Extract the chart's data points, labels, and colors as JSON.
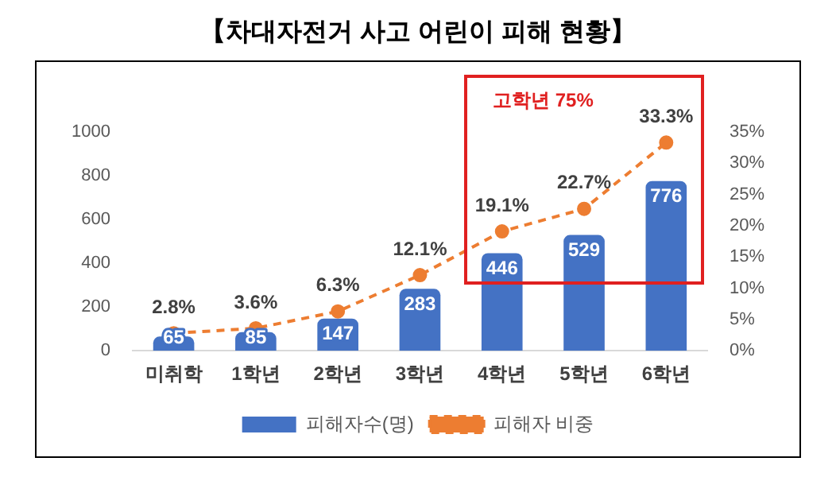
{
  "chart_data": {
    "type": "bar",
    "title": "【차대자전거 사고 어린이 피해 현황】",
    "categories": [
      "미취학",
      "1학년",
      "2학년",
      "3학년",
      "4학년",
      "5학년",
      "6학년"
    ],
    "series": [
      {
        "name": "피해자수(명)",
        "color": "#4472c4",
        "values": [
          65,
          85,
          147,
          283,
          446,
          529,
          776
        ],
        "value_labels": [
          "65",
          "85",
          "147",
          "283",
          "446",
          "529",
          "776"
        ]
      },
      {
        "name": "피해자 비중",
        "type": "line",
        "axis": "y2",
        "color": "#ed7d31",
        "line_style": "dashed",
        "marker": "circle",
        "values": [
          2.8,
          3.6,
          6.3,
          12.1,
          19.1,
          22.7,
          33.3
        ],
        "value_labels": [
          "2.8%",
          "3.6%",
          "6.3%",
          "12.1%",
          "19.1%",
          "22.7%",
          "33.3%"
        ]
      }
    ],
    "ylim": [
      0,
      1000
    ],
    "yticks": [
      0,
      200,
      400,
      600,
      800,
      1000
    ],
    "y2lim": [
      0,
      35
    ],
    "y2ticks": [
      {
        "value": 0,
        "label": "0%"
      },
      {
        "value": 5,
        "label": "5%"
      },
      {
        "value": 10,
        "label": "10%"
      },
      {
        "value": 15,
        "label": "15%"
      },
      {
        "value": 20,
        "label": "20%"
      },
      {
        "value": 25,
        "label": "25%"
      },
      {
        "value": 30,
        "label": "30%"
      },
      {
        "value": 35,
        "label": "35%"
      }
    ],
    "annotations": [
      "고학년 75%"
    ],
    "legend": "bottom"
  }
}
